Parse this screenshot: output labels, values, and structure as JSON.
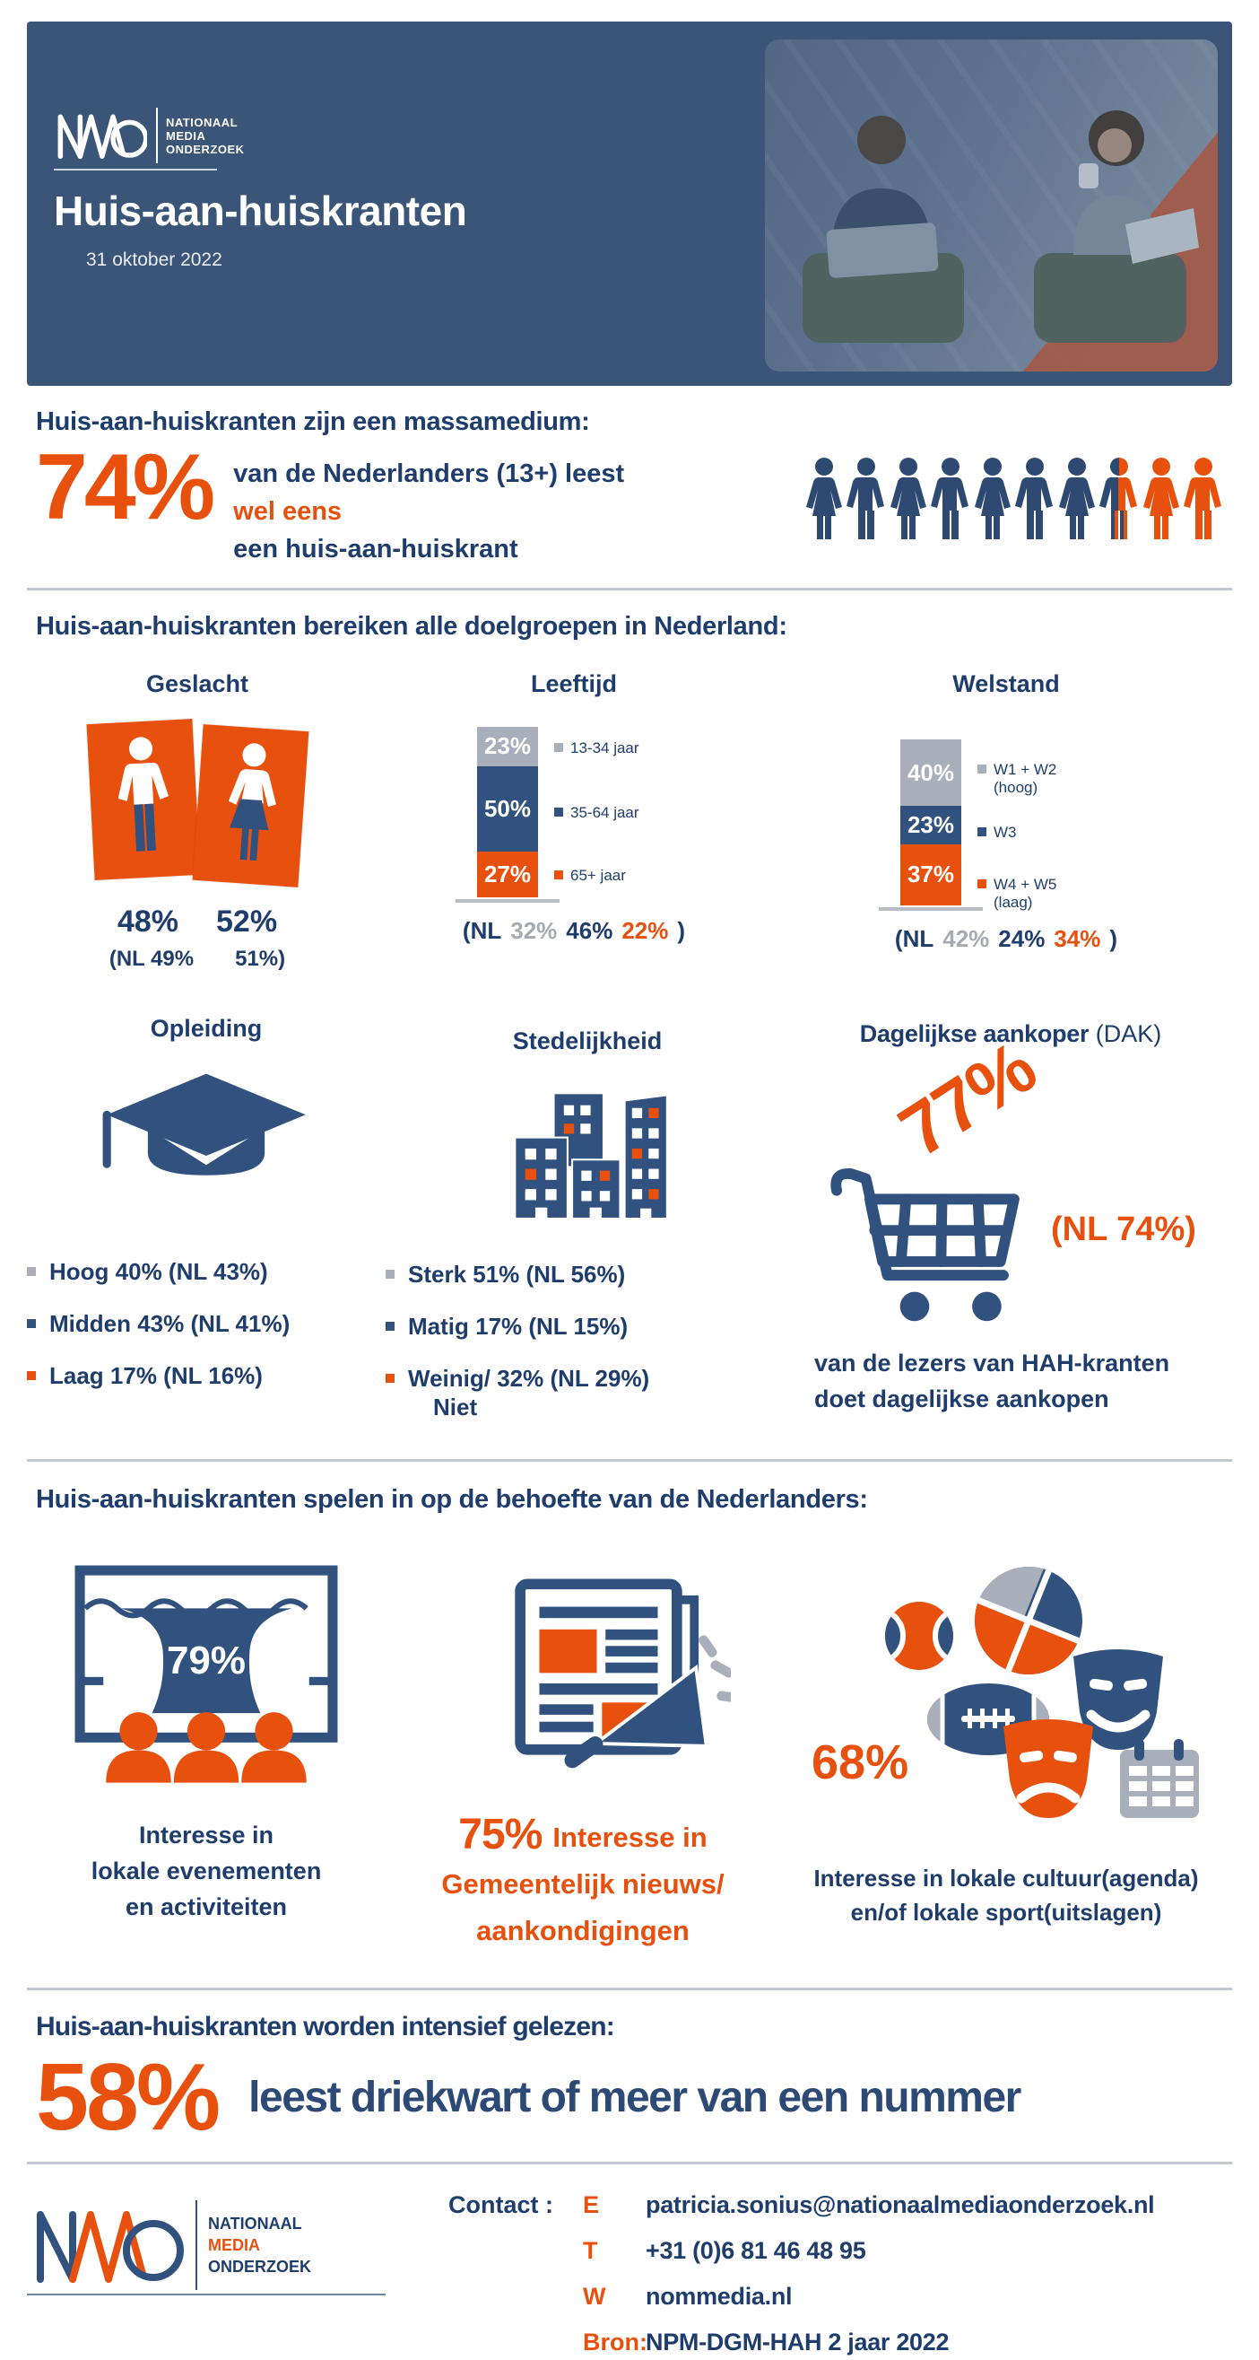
{
  "colors": {
    "header_bg": "#3A5578",
    "navy_text": "#1F3D6C",
    "icon_blue": "#31517E",
    "orange": "#E8500E",
    "gray": "#A9AFBA",
    "photo_orange": "#D95B2E"
  },
  "header": {
    "logo": {
      "letters": "NMO",
      "org_lines": [
        "NATIONAAL",
        "MEDIA",
        "ONDERZOEK"
      ]
    },
    "title": "Huis-aan-huiskranten",
    "date": "31 oktober 2022"
  },
  "massamedium": {
    "heading": "Huis-aan-huiskranten zijn een massamedium:",
    "stat": "74%",
    "line1_before": "van de Nederlanders (13+) leest ",
    "line1_highlight": "wel eens",
    "line2": "een huis-aan-huiskrant"
  },
  "doelgroepen": {
    "heading": "Huis-aan-huiskranten bereiken alle doelgroepen in Nederland:",
    "geslacht": {
      "title": "Geslacht",
      "male_value": "48%",
      "female_value": "52%",
      "nl_left": "(NL 49%",
      "nl_right": "51%)"
    },
    "leeftijd": {
      "title": "Leeftijd",
      "bars": [
        {
          "value": "23%",
          "label": "13-34 jaar"
        },
        {
          "value": "50%",
          "label": "35-64 jaar"
        },
        {
          "value": "27%",
          "label": "65+ jaar"
        }
      ],
      "nl_prefix": "(NL",
      "nl_values": [
        "32%",
        "46%",
        "22%"
      ],
      "nl_suffix": ")"
    },
    "welstand": {
      "title": "Welstand",
      "bars": [
        {
          "value": "40%",
          "label": "W1 + W2",
          "sublabel": "(hoog)"
        },
        {
          "value": "23%",
          "label": "W3",
          "sublabel": ""
        },
        {
          "value": "37%",
          "label": "W4 + W5",
          "sublabel": "(laag)"
        }
      ],
      "nl_prefix": "(NL",
      "nl_values": [
        "42%",
        "24%",
        "34%"
      ],
      "nl_suffix": ")"
    }
  },
  "opleiding": {
    "title": "Opleiding",
    "items": [
      {
        "text": "Hoog 40% (NL 43%)"
      },
      {
        "text": "Midden 43% (NL 41%)"
      },
      {
        "text": "Laag 17% (NL 16%)"
      }
    ]
  },
  "stedelijkheid": {
    "title": "Stedelijkheid",
    "items": [
      {
        "line1": "Sterk 51% (NL 56%)",
        "line2": ""
      },
      {
        "line1": "Matig 17% (NL 15%)",
        "line2": ""
      },
      {
        "line1": "Weinig/ 32% (NL 29%)",
        "line2": "Niet"
      }
    ]
  },
  "dak": {
    "title_bold": "Dagelijkse aankoper",
    "title_rest": "(DAK)",
    "stat": "77%",
    "nl": "(NL 74%)",
    "caption1": "van de lezers van HAH-kranten",
    "caption2": "doet dagelijkse aankopen"
  },
  "behoefte": {
    "heading": "Huis-aan-huiskranten spelen in op de behoefte van de Nederlanders:",
    "evenementen": {
      "stat": "79%",
      "caption1": "Interesse in",
      "caption2": "lokale evenementen",
      "caption3": "en activiteiten"
    },
    "nieuws": {
      "stat": "75%",
      "caption1": "Interesse in",
      "caption2": "Gemeentelijk nieuws/",
      "caption3": "aankondigingen"
    },
    "cultuur": {
      "stat": "68%",
      "caption1": "Interesse in lokale cultuur(agenda)",
      "caption2": "en/of lokale sport(uitslagen)"
    }
  },
  "gelezen": {
    "heading": "Huis-aan-huiskranten worden intensief gelezen:",
    "stat": "58%",
    "text": "leest driekwart of meer van een nummer"
  },
  "footer": {
    "logo": {
      "letters": "NMO",
      "org_lines": [
        "NATIONAAL",
        "MEDIA",
        "ONDERZOEK"
      ]
    },
    "contact_label": "Contact :",
    "rows": [
      {
        "label": "E",
        "value": "patricia.sonius@nationaalmediaonderzoek.nl"
      },
      {
        "label": "T",
        "value": "+31 (0)6 81 46 48 95"
      },
      {
        "label": "W",
        "value": "nommedia.nl"
      },
      {
        "label": "Bron:",
        "value": "NPM-DGM-HAH 2 jaar 2022"
      }
    ]
  },
  "chart_data": [
    {
      "type": "bar",
      "subtype": "stacked",
      "title": "Leeftijd",
      "categories": [
        "13-34 jaar",
        "35-64 jaar",
        "65+ jaar"
      ],
      "values": [
        23,
        50,
        27
      ],
      "nl_values": [
        32,
        46,
        22
      ],
      "unit": "%",
      "colors": [
        "gray",
        "navy",
        "orange"
      ]
    },
    {
      "type": "bar",
      "subtype": "stacked",
      "title": "Welstand",
      "categories": [
        "W1 + W2 (hoog)",
        "W3",
        "W4 + W5 (laag)"
      ],
      "values": [
        40,
        23,
        37
      ],
      "nl_values": [
        42,
        24,
        34
      ],
      "unit": "%",
      "colors": [
        "gray",
        "navy",
        "orange"
      ]
    },
    {
      "type": "bar",
      "title": "Geslacht",
      "categories": [
        "Man",
        "Vrouw"
      ],
      "values": [
        48,
        52
      ],
      "nl_values": [
        49,
        51
      ],
      "unit": "%"
    },
    {
      "type": "bar",
      "title": "Opleiding",
      "categories": [
        "Hoog",
        "Midden",
        "Laag"
      ],
      "values": [
        40,
        43,
        17
      ],
      "nl_values": [
        43,
        41,
        16
      ],
      "unit": "%"
    },
    {
      "type": "bar",
      "title": "Stedelijkheid",
      "categories": [
        "Sterk",
        "Matig",
        "Weinig/Niet"
      ],
      "values": [
        51,
        17,
        32
      ],
      "nl_values": [
        56,
        15,
        29
      ],
      "unit": "%"
    },
    {
      "type": "stat",
      "title": "Leest wel eens een huis-aan-huiskrant (13+)",
      "value": 74,
      "unit": "%"
    },
    {
      "type": "stat",
      "title": "Dagelijkse aankoper (DAK)",
      "value": 77,
      "nl_value": 74,
      "unit": "%"
    },
    {
      "type": "stat",
      "title": "Interesse in lokale evenementen en activiteiten",
      "value": 79,
      "unit": "%"
    },
    {
      "type": "stat",
      "title": "Interesse in gemeentelijk nieuws/aankondigingen",
      "value": 75,
      "unit": "%"
    },
    {
      "type": "stat",
      "title": "Interesse in lokale cultuur(agenda) en/of lokale sport(uitslagen)",
      "value": 68,
      "unit": "%"
    },
    {
      "type": "stat",
      "title": "Leest driekwart of meer van een nummer",
      "value": 58,
      "unit": "%"
    }
  ]
}
